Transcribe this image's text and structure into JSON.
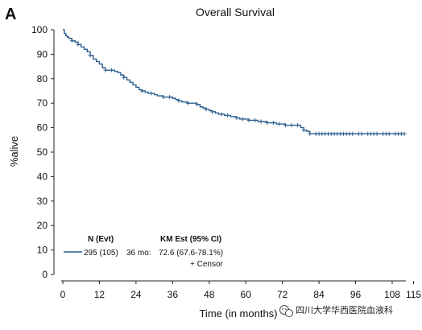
{
  "panel_label": "A",
  "watermark": "四川大学华西医院血液科",
  "chart_data": {
    "type": "line",
    "title": "Overall Survival",
    "xlabel": "Time (in months)",
    "ylabel": "%alive",
    "xlim": [
      0,
      115
    ],
    "ylim": [
      0,
      100
    ],
    "xticks": [
      0,
      12,
      24,
      36,
      48,
      60,
      72,
      84,
      96,
      108,
      115
    ],
    "yticks": [
      0,
      10,
      20,
      30,
      40,
      50,
      60,
      70,
      80,
      90,
      100
    ],
    "grid": false,
    "legend": {
      "position": "bottom-left",
      "headers": [
        "N (Evt)",
        "KM Est (95% CI)"
      ],
      "rows": [
        {
          "n_evt": "295 (105)",
          "time": "36 mo:",
          "km_est": "72.6 (67.6-78.1%)",
          "censor": "+ Censor"
        }
      ]
    },
    "series": [
      {
        "color": "#2b5f8e",
        "x": [
          0,
          0.5,
          1,
          1.5,
          2,
          3,
          4,
          5,
          6,
          7,
          8,
          9,
          10,
          11,
          12,
          13,
          14,
          15,
          16,
          17,
          18,
          19,
          20,
          21,
          22,
          23,
          24,
          25,
          26,
          27,
          28,
          29,
          30,
          31,
          32,
          33,
          34,
          35,
          36,
          37,
          38,
          39,
          40,
          41,
          42,
          43,
          44,
          45,
          46,
          47,
          48,
          49,
          50,
          51,
          52,
          53,
          54,
          55,
          56,
          57,
          58,
          59,
          60,
          61,
          62,
          63,
          64,
          65,
          66,
          67,
          68,
          69,
          70,
          71,
          72,
          73,
          74,
          75,
          76,
          77,
          78,
          79,
          80,
          81,
          82,
          84,
          90,
          96,
          100,
          104,
          108,
          112
        ],
        "y": [
          100,
          98.5,
          97.5,
          97,
          96.5,
          95.5,
          95,
          94,
          93,
          92,
          91,
          89.5,
          88,
          87,
          86,
          84.5,
          83.5,
          83.5,
          83.5,
          83,
          82.5,
          81.5,
          80.5,
          79.5,
          78.5,
          77.5,
          76.5,
          75.5,
          75,
          74.5,
          74,
          74,
          73.5,
          73,
          73,
          72.5,
          72.5,
          72.5,
          72,
          71.5,
          71,
          70.5,
          70.5,
          70,
          70,
          70,
          69.5,
          68.5,
          68,
          67.5,
          67,
          66.5,
          66,
          65.5,
          65.5,
          65,
          65,
          64.5,
          64.5,
          64,
          63.5,
          63.5,
          63.5,
          63,
          63,
          63,
          62.5,
          62.5,
          62.5,
          62,
          62,
          62,
          61.5,
          61.5,
          61.5,
          61,
          61,
          61,
          61,
          61,
          60,
          59,
          58.5,
          57.5,
          57.5,
          57.5,
          57.5,
          57.5,
          57.5,
          57.5,
          57.5,
          57.5
        ],
        "censor_x": [
          3,
          5,
          9,
          14,
          16,
          20,
          26,
          29,
          33,
          35,
          38,
          41,
          44,
          47,
          49,
          52,
          54,
          57,
          59,
          61,
          63,
          65,
          67,
          69,
          71,
          73,
          75,
          77,
          79,
          81,
          83,
          84,
          85,
          86,
          87,
          88,
          89,
          90,
          91,
          92,
          93,
          94,
          95,
          97,
          98,
          100,
          101,
          102,
          103,
          105,
          106,
          107,
          109,
          110,
          111,
          112
        ]
      }
    ]
  }
}
